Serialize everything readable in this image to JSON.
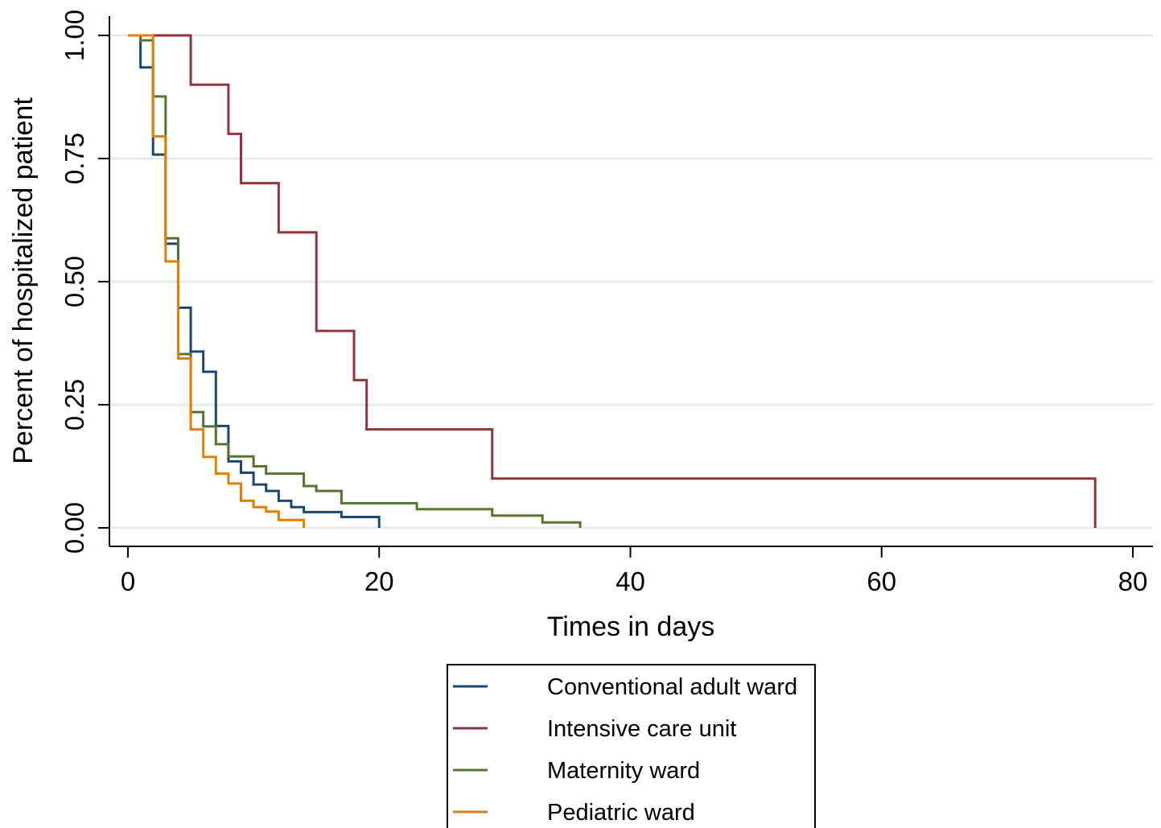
{
  "chart_data": {
    "type": "line",
    "step": true,
    "title": "",
    "xlabel": "Times in days",
    "ylabel": "Percent of hospitalized patient",
    "xlim": [
      0,
      80
    ],
    "ylim": [
      0,
      1
    ],
    "xticks": [
      0,
      20,
      40,
      60,
      80
    ],
    "xtick_labels": [
      "0",
      "20",
      "40",
      "60",
      "80"
    ],
    "yticks": [
      0,
      0.25,
      0.5,
      0.75,
      1
    ],
    "ytick_labels": [
      "0.00",
      "0.25",
      "0.50",
      "0.75",
      "1.00"
    ],
    "grid": true,
    "legend_position": "bottom",
    "series": [
      {
        "name": "Conventional adult ward",
        "color": "#1a476f",
        "x": [
          0,
          1,
          2,
          3,
          4,
          5,
          6,
          7,
          8,
          9,
          10,
          11,
          12,
          13,
          14,
          17,
          20
        ],
        "y": [
          1.0,
          0.935,
          0.758,
          0.577,
          0.447,
          0.358,
          0.317,
          0.207,
          0.135,
          0.112,
          0.088,
          0.075,
          0.055,
          0.042,
          0.032,
          0.022,
          0.0
        ]
      },
      {
        "name": "Intensive care unit",
        "color": "#90353b",
        "x": [
          0,
          5,
          8,
          9,
          12,
          15,
          18,
          19,
          29,
          77
        ],
        "y": [
          1.0,
          0.9,
          0.8,
          0.7,
          0.6,
          0.4,
          0.3,
          0.2,
          0.1,
          0.0
        ]
      },
      {
        "name": "Maternity ward",
        "color": "#55752f",
        "x": [
          0,
          1,
          2,
          3,
          4,
          5,
          6,
          7,
          8,
          10,
          11,
          14,
          15,
          17,
          23,
          29,
          33,
          36
        ],
        "y": [
          1.0,
          0.99,
          0.876,
          0.588,
          0.353,
          0.235,
          0.206,
          0.17,
          0.145,
          0.125,
          0.11,
          0.085,
          0.075,
          0.05,
          0.038,
          0.025,
          0.011,
          0.0
        ]
      },
      {
        "name": "Pediatric ward",
        "color": "#e37e00",
        "x": [
          0,
          2,
          3,
          4,
          5,
          6,
          7,
          8,
          9,
          10,
          11,
          12,
          14
        ],
        "y": [
          1.0,
          0.795,
          0.541,
          0.344,
          0.2,
          0.144,
          0.11,
          0.09,
          0.055,
          0.042,
          0.033,
          0.016,
          0.0
        ]
      }
    ]
  }
}
